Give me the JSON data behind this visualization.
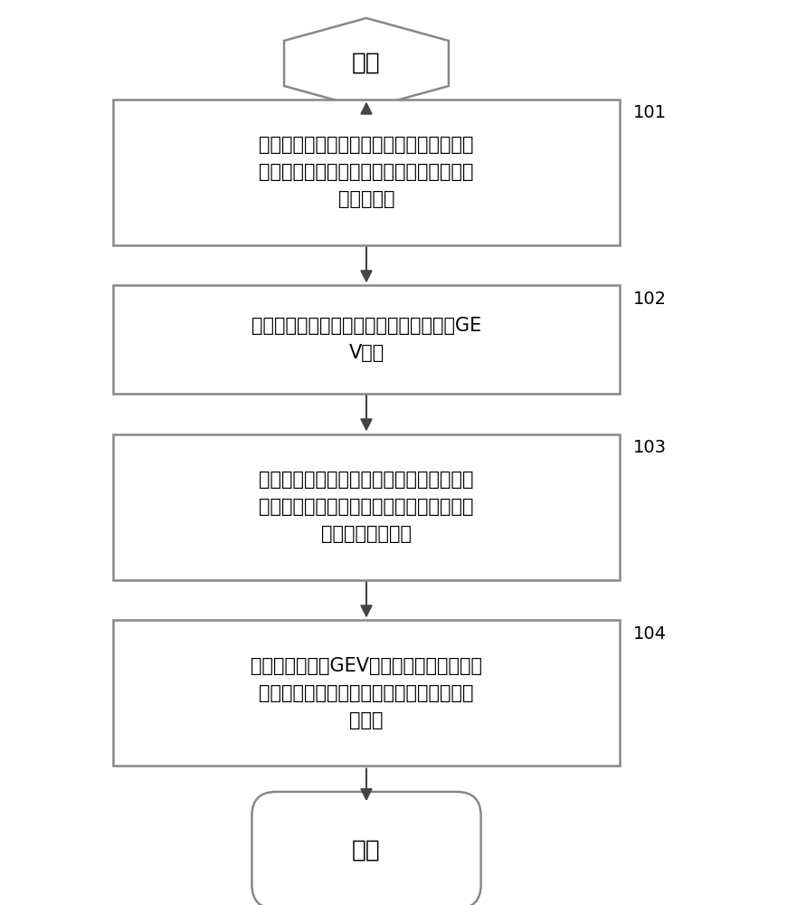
{
  "background_color": "#ffffff",
  "start_label": "开始",
  "end_label": "结束",
  "boxes": [
    {
      "id": 1,
      "label": "获取河流的目标断面在预设历史时间段内的\n洪水监测历史数据，以及获取预估期内的气\n候变化参数",
      "tag": "101"
    },
    {
      "id": 2,
      "label": "根据所述洪水监测历史数据，确定非平稳GE\nV模型",
      "tag": "102"
    },
    {
      "id": 3,
      "label": "将所述气候变化参数输入至分布式水文模型\n中，计算得到河流的目标断面的在所述预估\n期内的逐日径流量",
      "tag": "103"
    },
    {
      "id": 4,
      "label": "根据所述非平稳GEV模型和所述逐日径流量\n，确定所述河流的目标断面在预估期内的洪\n水频率",
      "tag": "104"
    }
  ],
  "box_edge_color": "#888888",
  "text_color": "#000000",
  "arrow_color": "#444444",
  "font_size": 15,
  "tag_font_size": 14
}
